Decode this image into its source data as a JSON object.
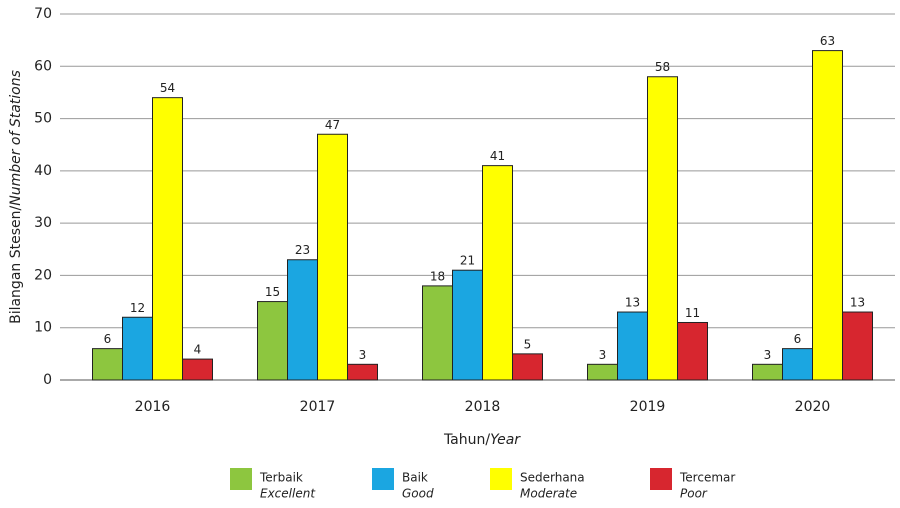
{
  "chart_data": {
    "type": "bar",
    "ylabel": "Bilangan Stesen/",
    "ylabel_italic": "Number of Stations",
    "xlabel": "Tahun/",
    "xlabel_italic": "Year",
    "categories": [
      "2016",
      "2017",
      "2018",
      "2019",
      "2020"
    ],
    "series": [
      {
        "name": "Terbaik",
        "name_en": "Excellent",
        "color": "#8dc63f",
        "values": [
          6,
          15,
          18,
          3,
          3
        ]
      },
      {
        "name": "Baik",
        "name_en": "Good",
        "color": "#1ba6e1",
        "values": [
          12,
          23,
          21,
          13,
          6
        ]
      },
      {
        "name": "Sederhana",
        "name_en": "Moderate",
        "color": "#ffff00",
        "values": [
          54,
          47,
          41,
          58,
          63
        ]
      },
      {
        "name": "Tercemar",
        "name_en": "Poor",
        "color": "#d7262f",
        "values": [
          4,
          3,
          5,
          11,
          13
        ]
      }
    ],
    "ylim": [
      0,
      70
    ],
    "yticks": [
      0,
      10,
      20,
      30,
      40,
      50,
      60,
      70
    ],
    "grid": true
  }
}
